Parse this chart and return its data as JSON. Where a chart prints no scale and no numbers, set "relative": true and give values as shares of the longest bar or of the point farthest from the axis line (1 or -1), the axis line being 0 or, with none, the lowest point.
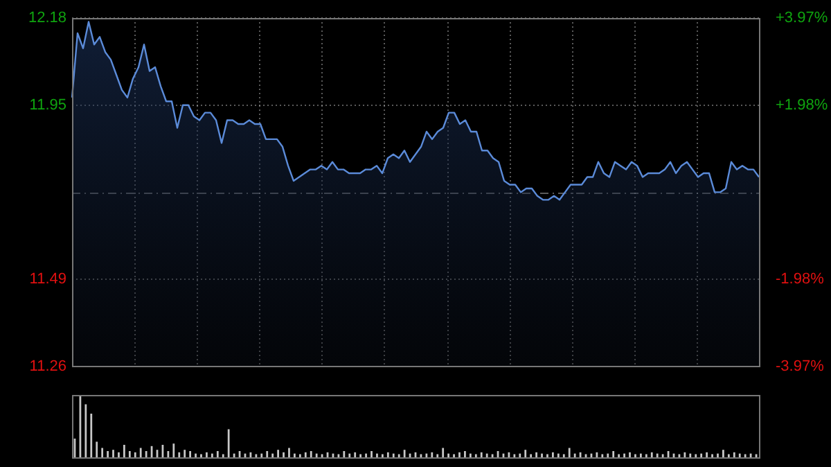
{
  "chart_data": [
    {
      "type": "area",
      "categories": [
        null,
        null,
        null,
        null,
        null,
        null,
        null,
        null,
        null,
        null,
        null,
        null,
        null,
        null,
        null,
        null,
        null,
        null,
        null,
        null,
        null,
        null,
        null,
        null,
        null,
        null,
        null,
        null,
        null,
        null,
        null,
        null,
        null,
        null,
        null,
        null,
        null,
        null,
        null,
        null,
        null,
        null,
        null,
        null,
        null,
        null,
        null,
        null,
        null,
        null,
        null,
        null,
        null,
        null,
        null,
        null,
        null,
        null,
        null,
        null,
        null,
        null,
        null,
        null,
        null,
        null,
        null,
        null,
        null,
        null,
        null,
        null,
        null,
        null,
        null,
        null,
        null,
        null,
        null,
        null,
        null,
        null,
        null,
        null,
        null,
        null,
        null,
        null,
        null,
        null,
        null,
        null,
        null,
        null,
        null,
        null,
        null,
        null,
        null,
        null,
        null,
        null,
        null,
        null,
        null,
        null,
        null,
        null,
        null,
        null,
        null,
        null,
        null,
        null,
        null,
        null,
        null,
        null,
        null,
        null,
        null,
        null,
        null,
        null,
        null
      ],
      "values": [
        11.97,
        12.14,
        12.1,
        12.17,
        12.11,
        12.13,
        12.09,
        12.07,
        12.03,
        11.99,
        11.97,
        12.02,
        12.05,
        12.11,
        12.04,
        12.05,
        12.0,
        11.96,
        11.96,
        11.89,
        11.95,
        11.95,
        11.92,
        11.91,
        11.93,
        11.93,
        11.91,
        11.85,
        11.91,
        11.91,
        11.9,
        11.9,
        11.91,
        11.9,
        11.9,
        11.86,
        11.86,
        11.86,
        11.84,
        11.79,
        11.75,
        11.76,
        11.77,
        11.78,
        11.78,
        11.79,
        11.78,
        11.8,
        11.78,
        11.78,
        11.77,
        11.77,
        11.77,
        11.78,
        11.78,
        11.79,
        11.77,
        11.81,
        11.82,
        11.81,
        11.83,
        11.8,
        11.82,
        11.84,
        11.88,
        11.86,
        11.88,
        11.89,
        11.93,
        11.93,
        11.9,
        11.91,
        11.88,
        11.88,
        11.83,
        11.83,
        11.81,
        11.8,
        11.75,
        11.74,
        11.74,
        11.72,
        11.73,
        11.73,
        11.71,
        11.7,
        11.7,
        11.71,
        11.7,
        11.72,
        11.74,
        11.74,
        11.74,
        11.76,
        11.76,
        11.8,
        11.77,
        11.76,
        11.8,
        11.79,
        11.78,
        11.8,
        11.79,
        11.76,
        11.77,
        11.77,
        11.77,
        11.78,
        11.8,
        11.77,
        11.79,
        11.8,
        11.78,
        11.76,
        11.77,
        11.77,
        11.72,
        11.72,
        11.73,
        11.8,
        11.78,
        11.79,
        11.78,
        11.78,
        11.76
      ],
      "color": "#5b8bd9",
      "ylim": [
        11.26,
        12.18
      ],
      "yticks": [
        12.18,
        11.95,
        11.49,
        11.26
      ],
      "y2lim": [
        -3.97,
        3.97
      ],
      "y2ticks": [
        {
          "value": 3.97,
          "label": "+3.97%"
        },
        {
          "value": 1.98,
          "label": "+1.98%"
        },
        {
          "value": -1.98,
          "label": "-1.98%"
        },
        {
          "value": -3.97,
          "label": "-3.97%"
        }
      ],
      "ref_lines": [
        {
          "axis": "y",
          "value": 11.72,
          "line_style": "dashed"
        }
      ],
      "grid": true
    },
    {
      "type": "bar",
      "relative": true,
      "categories": [
        null,
        null,
        null,
        null,
        null,
        null,
        null,
        null,
        null,
        null,
        null,
        null,
        null,
        null,
        null,
        null,
        null,
        null,
        null,
        null,
        null,
        null,
        null,
        null,
        null,
        null,
        null,
        null,
        null,
        null,
        null,
        null,
        null,
        null,
        null,
        null,
        null,
        null,
        null,
        null,
        null,
        null,
        null,
        null,
        null,
        null,
        null,
        null,
        null,
        null,
        null,
        null,
        null,
        null,
        null,
        null,
        null,
        null,
        null,
        null,
        null,
        null,
        null,
        null,
        null,
        null,
        null,
        null,
        null,
        null,
        null,
        null,
        null,
        null,
        null,
        null,
        null,
        null,
        null,
        null,
        null,
        null,
        null,
        null,
        null,
        null,
        null,
        null,
        null,
        null,
        null,
        null,
        null,
        null,
        null,
        null,
        null,
        null,
        null,
        null,
        null,
        null,
        null,
        null,
        null,
        null,
        null,
        null,
        null,
        null,
        null,
        null,
        null,
        null,
        null,
        null,
        null,
        null,
        null,
        null,
        null,
        null,
        null,
        null,
        null
      ],
      "values": [
        0.3,
        1.0,
        0.85,
        0.7,
        0.25,
        0.15,
        0.1,
        0.12,
        0.08,
        0.2,
        0.1,
        0.08,
        0.15,
        0.1,
        0.18,
        0.12,
        0.2,
        0.1,
        0.22,
        0.08,
        0.12,
        0.1,
        0.06,
        0.05,
        0.08,
        0.06,
        0.1,
        0.05,
        0.45,
        0.06,
        0.1,
        0.06,
        0.08,
        0.05,
        0.06,
        0.1,
        0.06,
        0.12,
        0.08,
        0.15,
        0.06,
        0.05,
        0.08,
        0.1,
        0.06,
        0.05,
        0.08,
        0.06,
        0.05,
        0.1,
        0.06,
        0.08,
        0.05,
        0.06,
        0.1,
        0.06,
        0.05,
        0.08,
        0.06,
        0.05,
        0.12,
        0.06,
        0.08,
        0.05,
        0.06,
        0.08,
        0.05,
        0.15,
        0.06,
        0.05,
        0.08,
        0.1,
        0.06,
        0.05,
        0.08,
        0.06,
        0.05,
        0.1,
        0.06,
        0.08,
        0.05,
        0.06,
        0.12,
        0.05,
        0.08,
        0.06,
        0.05,
        0.08,
        0.06,
        0.05,
        0.15,
        0.06,
        0.08,
        0.05,
        0.06,
        0.08,
        0.05,
        0.06,
        0.1,
        0.05,
        0.06,
        0.08,
        0.05,
        0.06,
        0.05,
        0.08,
        0.06,
        0.05,
        0.1,
        0.06,
        0.05,
        0.08,
        0.06,
        0.05,
        0.06,
        0.08,
        0.05,
        0.06,
        0.12,
        0.05,
        0.08,
        0.06,
        0.05,
        0.06,
        0.05
      ],
      "color": "#c8c8c8"
    }
  ]
}
